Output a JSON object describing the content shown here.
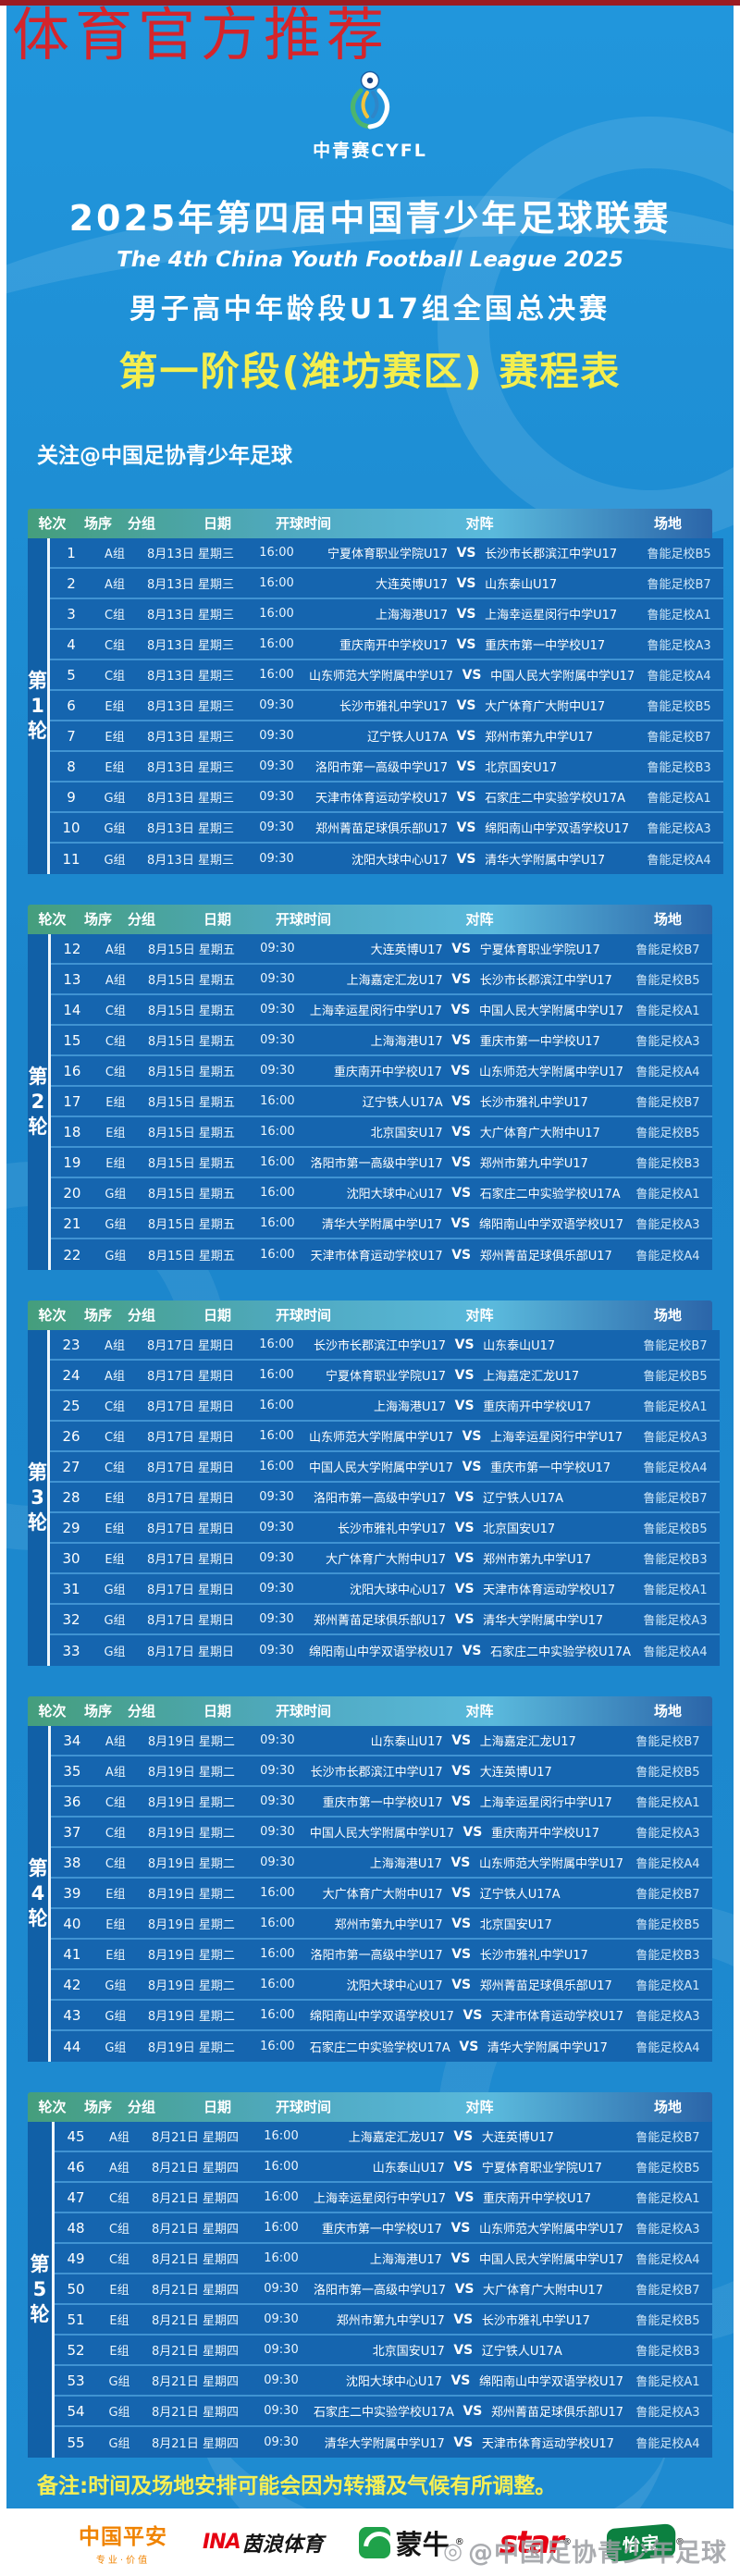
{
  "top_watermark": "体育官方推荐",
  "logo": {
    "label": "中青赛CYFL"
  },
  "header": {
    "title_cn": "2025年第四届中国青少年足球联赛",
    "title_en": "The 4th China Youth Football League 2025",
    "subtitle": "男子高中年龄段U17组全国总决赛",
    "stage": "第一阶段(潍坊赛区) 赛程表",
    "follow": "关注@中国足协青少年足球"
  },
  "table": {
    "columns": {
      "round": "轮次",
      "no": "场序",
      "group": "分组",
      "date": "日期",
      "time": "开球时间",
      "match": "对阵",
      "venue": "场地"
    },
    "vs": "VS",
    "rounds": [
      {
        "label": "第1轮",
        "matches": [
          {
            "no": "1",
            "group": "A组",
            "date": "8月13日 星期三",
            "time": "16:00",
            "home": "宁夏体育职业学院U17",
            "away": "长沙市长郡滨江中学U17",
            "venue": "鲁能足校B5"
          },
          {
            "no": "2",
            "group": "A组",
            "date": "8月13日 星期三",
            "time": "16:00",
            "home": "大连英博U17",
            "away": "山东泰山U17",
            "venue": "鲁能足校B7"
          },
          {
            "no": "3",
            "group": "C组",
            "date": "8月13日 星期三",
            "time": "16:00",
            "home": "上海海港U17",
            "away": "上海幸运星闵行中学U17",
            "venue": "鲁能足校A1"
          },
          {
            "no": "4",
            "group": "C组",
            "date": "8月13日 星期三",
            "time": "16:00",
            "home": "重庆南开中学校U17",
            "away": "重庆市第一中学校U17",
            "venue": "鲁能足校A3"
          },
          {
            "no": "5",
            "group": "C组",
            "date": "8月13日 星期三",
            "time": "16:00",
            "home": "山东师范大学附属中学U17",
            "away": "中国人民大学附属中学U17",
            "venue": "鲁能足校A4"
          },
          {
            "no": "6",
            "group": "E组",
            "date": "8月13日 星期三",
            "time": "09:30",
            "home": "长沙市雅礼中学U17",
            "away": "大广体育广大附中U17",
            "venue": "鲁能足校B5"
          },
          {
            "no": "7",
            "group": "E组",
            "date": "8月13日 星期三",
            "time": "09:30",
            "home": "辽宁铁人U17A",
            "away": "郑州市第九中学U17",
            "venue": "鲁能足校B7"
          },
          {
            "no": "8",
            "group": "E组",
            "date": "8月13日 星期三",
            "time": "09:30",
            "home": "洛阳市第一高级中学U17",
            "away": "北京国安U17",
            "venue": "鲁能足校B3"
          },
          {
            "no": "9",
            "group": "G组",
            "date": "8月13日 星期三",
            "time": "09:30",
            "home": "天津市体育运动学校U17",
            "away": "石家庄二中实验学校U17A",
            "venue": "鲁能足校A1"
          },
          {
            "no": "10",
            "group": "G组",
            "date": "8月13日 星期三",
            "time": "09:30",
            "home": "郑州菁苗足球俱乐部U17",
            "away": "绵阳南山中学双语学校U17",
            "venue": "鲁能足校A3"
          },
          {
            "no": "11",
            "group": "G组",
            "date": "8月13日 星期三",
            "time": "09:30",
            "home": "沈阳大球中心U17",
            "away": "清华大学附属中学U17",
            "venue": "鲁能足校A4"
          }
        ]
      },
      {
        "label": "第2轮",
        "matches": [
          {
            "no": "12",
            "group": "A组",
            "date": "8月15日 星期五",
            "time": "09:30",
            "home": "大连英博U17",
            "away": "宁夏体育职业学院U17",
            "venue": "鲁能足校B7"
          },
          {
            "no": "13",
            "group": "A组",
            "date": "8月15日 星期五",
            "time": "09:30",
            "home": "上海嘉定汇龙U17",
            "away": "长沙市长郡滨江中学U17",
            "venue": "鲁能足校B5"
          },
          {
            "no": "14",
            "group": "C组",
            "date": "8月15日 星期五",
            "time": "09:30",
            "home": "上海幸运星闵行中学U17",
            "away": "中国人民大学附属中学U17",
            "venue": "鲁能足校A1"
          },
          {
            "no": "15",
            "group": "C组",
            "date": "8月15日 星期五",
            "time": "09:30",
            "home": "上海海港U17",
            "away": "重庆市第一中学校U17",
            "venue": "鲁能足校A3"
          },
          {
            "no": "16",
            "group": "C组",
            "date": "8月15日 星期五",
            "time": "09:30",
            "home": "重庆南开中学校U17",
            "away": "山东师范大学附属中学U17",
            "venue": "鲁能足校A4"
          },
          {
            "no": "17",
            "group": "E组",
            "date": "8月15日 星期五",
            "time": "16:00",
            "home": "辽宁铁人U17A",
            "away": "长沙市雅礼中学U17",
            "venue": "鲁能足校B7"
          },
          {
            "no": "18",
            "group": "E组",
            "date": "8月15日 星期五",
            "time": "16:00",
            "home": "北京国安U17",
            "away": "大广体育广大附中U17",
            "venue": "鲁能足校B5"
          },
          {
            "no": "19",
            "group": "E组",
            "date": "8月15日 星期五",
            "time": "16:00",
            "home": "洛阳市第一高级中学U17",
            "away": "郑州市第九中学U17",
            "venue": "鲁能足校B3"
          },
          {
            "no": "20",
            "group": "G组",
            "date": "8月15日 星期五",
            "time": "16:00",
            "home": "沈阳大球中心U17",
            "away": "石家庄二中实验学校U17A",
            "venue": "鲁能足校A1"
          },
          {
            "no": "21",
            "group": "G组",
            "date": "8月15日 星期五",
            "time": "16:00",
            "home": "清华大学附属中学U17",
            "away": "绵阳南山中学双语学校U17",
            "venue": "鲁能足校A3"
          },
          {
            "no": "22",
            "group": "G组",
            "date": "8月15日 星期五",
            "time": "16:00",
            "home": "天津市体育运动学校U17",
            "away": "郑州菁苗足球俱乐部U17",
            "venue": "鲁能足校A4"
          }
        ]
      },
      {
        "label": "第3轮",
        "matches": [
          {
            "no": "23",
            "group": "A组",
            "date": "8月17日 星期日",
            "time": "16:00",
            "home": "长沙市长郡滨江中学U17",
            "away": "山东泰山U17",
            "venue": "鲁能足校B7"
          },
          {
            "no": "24",
            "group": "A组",
            "date": "8月17日 星期日",
            "time": "16:00",
            "home": "宁夏体育职业学院U17",
            "away": "上海嘉定汇龙U17",
            "venue": "鲁能足校B5"
          },
          {
            "no": "25",
            "group": "C组",
            "date": "8月17日 星期日",
            "time": "16:00",
            "home": "上海海港U17",
            "away": "重庆南开中学校U17",
            "venue": "鲁能足校A1"
          },
          {
            "no": "26",
            "group": "C组",
            "date": "8月17日 星期日",
            "time": "16:00",
            "home": "山东师范大学附属中学U17",
            "away": "上海幸运星闵行中学U17",
            "venue": "鲁能足校A3"
          },
          {
            "no": "27",
            "group": "C组",
            "date": "8月17日 星期日",
            "time": "16:00",
            "home": "中国人民大学附属中学U17",
            "away": "重庆市第一中学校U17",
            "venue": "鲁能足校A4"
          },
          {
            "no": "28",
            "group": "E组",
            "date": "8月17日 星期日",
            "time": "09:30",
            "home": "洛阳市第一高级中学U17",
            "away": "辽宁铁人U17A",
            "venue": "鲁能足校B7"
          },
          {
            "no": "29",
            "group": "E组",
            "date": "8月17日 星期日",
            "time": "09:30",
            "home": "长沙市雅礼中学U17",
            "away": "北京国安U17",
            "venue": "鲁能足校B5"
          },
          {
            "no": "30",
            "group": "E组",
            "date": "8月17日 星期日",
            "time": "09:30",
            "home": "大广体育广大附中U17",
            "away": "郑州市第九中学U17",
            "venue": "鲁能足校B3"
          },
          {
            "no": "31",
            "group": "G组",
            "date": "8月17日 星期日",
            "time": "09:30",
            "home": "沈阳大球中心U17",
            "away": "天津市体育运动学校U17",
            "venue": "鲁能足校A1"
          },
          {
            "no": "32",
            "group": "G组",
            "date": "8月17日 星期日",
            "time": "09:30",
            "home": "郑州菁苗足球俱乐部U17",
            "away": "清华大学附属中学U17",
            "venue": "鲁能足校A3"
          },
          {
            "no": "33",
            "group": "G组",
            "date": "8月17日 星期日",
            "time": "09:30",
            "home": "绵阳南山中学双语学校U17",
            "away": "石家庄二中实验学校U17A",
            "venue": "鲁能足校A4"
          }
        ]
      },
      {
        "label": "第4轮",
        "matches": [
          {
            "no": "34",
            "group": "A组",
            "date": "8月19日 星期二",
            "time": "09:30",
            "home": "山东泰山U17",
            "away": "上海嘉定汇龙U17",
            "venue": "鲁能足校B7"
          },
          {
            "no": "35",
            "group": "A组",
            "date": "8月19日 星期二",
            "time": "09:30",
            "home": "长沙市长郡滨江中学U17",
            "away": "大连英博U17",
            "venue": "鲁能足校B5"
          },
          {
            "no": "36",
            "group": "C组",
            "date": "8月19日 星期二",
            "time": "09:30",
            "home": "重庆市第一中学校U17",
            "away": "上海幸运星闵行中学U17",
            "venue": "鲁能足校A1"
          },
          {
            "no": "37",
            "group": "C组",
            "date": "8月19日 星期二",
            "time": "09:30",
            "home": "中国人民大学附属中学U17",
            "away": "重庆南开中学校U17",
            "venue": "鲁能足校A3"
          },
          {
            "no": "38",
            "group": "C组",
            "date": "8月19日 星期二",
            "time": "09:30",
            "home": "上海海港U17",
            "away": "山东师范大学附属中学U17",
            "venue": "鲁能足校A4"
          },
          {
            "no": "39",
            "group": "E组",
            "date": "8月19日 星期二",
            "time": "16:00",
            "home": "大广体育广大附中U17",
            "away": "辽宁铁人U17A",
            "venue": "鲁能足校B7"
          },
          {
            "no": "40",
            "group": "E组",
            "date": "8月19日 星期二",
            "time": "16:00",
            "home": "郑州市第九中学U17",
            "away": "北京国安U17",
            "venue": "鲁能足校B5"
          },
          {
            "no": "41",
            "group": "E组",
            "date": "8月19日 星期二",
            "time": "16:00",
            "home": "洛阳市第一高级中学U17",
            "away": "长沙市雅礼中学U17",
            "venue": "鲁能足校B3"
          },
          {
            "no": "42",
            "group": "G组",
            "date": "8月19日 星期二",
            "time": "16:00",
            "home": "沈阳大球中心U17",
            "away": "郑州菁苗足球俱乐部U17",
            "venue": "鲁能足校A1"
          },
          {
            "no": "43",
            "group": "G组",
            "date": "8月19日 星期二",
            "time": "16:00",
            "home": "绵阳南山中学双语学校U17",
            "away": "天津市体育运动学校U17",
            "venue": "鲁能足校A3"
          },
          {
            "no": "44",
            "group": "G组",
            "date": "8月19日 星期二",
            "time": "16:00",
            "home": "石家庄二中实验学校U17A",
            "away": "清华大学附属中学U17",
            "venue": "鲁能足校A4"
          }
        ]
      },
      {
        "label": "第5轮",
        "matches": [
          {
            "no": "45",
            "group": "A组",
            "date": "8月21日 星期四",
            "time": "16:00",
            "home": "上海嘉定汇龙U17",
            "away": "大连英博U17",
            "venue": "鲁能足校B7"
          },
          {
            "no": "46",
            "group": "A组",
            "date": "8月21日 星期四",
            "time": "16:00",
            "home": "山东泰山U17",
            "away": "宁夏体育职业学院U17",
            "venue": "鲁能足校B5"
          },
          {
            "no": "47",
            "group": "C组",
            "date": "8月21日 星期四",
            "time": "16:00",
            "home": "上海幸运星闵行中学U17",
            "away": "重庆南开中学校U17",
            "venue": "鲁能足校A1"
          },
          {
            "no": "48",
            "group": "C组",
            "date": "8月21日 星期四",
            "time": "16:00",
            "home": "重庆市第一中学校U17",
            "away": "山东师范大学附属中学U17",
            "venue": "鲁能足校A3"
          },
          {
            "no": "49",
            "group": "C组",
            "date": "8月21日 星期四",
            "time": "16:00",
            "home": "上海海港U17",
            "away": "中国人民大学附属中学U17",
            "venue": "鲁能足校A4"
          },
          {
            "no": "50",
            "group": "E组",
            "date": "8月21日 星期四",
            "time": "09:30",
            "home": "洛阳市第一高级中学U17",
            "away": "大广体育广大附中U17",
            "venue": "鲁能足校B7"
          },
          {
            "no": "51",
            "group": "E组",
            "date": "8月21日 星期四",
            "time": "09:30",
            "home": "郑州市第九中学U17",
            "away": "长沙市雅礼中学U17",
            "venue": "鲁能足校B5"
          },
          {
            "no": "52",
            "group": "E组",
            "date": "8月21日 星期四",
            "time": "09:30",
            "home": "北京国安U17",
            "away": "辽宁铁人U17A",
            "venue": "鲁能足校B3"
          },
          {
            "no": "53",
            "group": "G组",
            "date": "8月21日 星期四",
            "time": "09:30",
            "home": "沈阳大球中心U17",
            "away": "绵阳南山中学双语学校U17",
            "venue": "鲁能足校A1"
          },
          {
            "no": "54",
            "group": "G组",
            "date": "8月21日 星期四",
            "time": "09:30",
            "home": "石家庄二中实验学校U17A",
            "away": "郑州菁苗足球俱乐部U17",
            "venue": "鲁能足校A3"
          },
          {
            "no": "55",
            "group": "G组",
            "date": "8月21日 星期四",
            "time": "09:30",
            "home": "清华大学附属中学U17",
            "away": "天津市体育运动学校U17",
            "venue": "鲁能足校A4"
          }
        ]
      }
    ]
  },
  "note": "备注:时间及场地安排可能会因为转播及气候有所调整。",
  "sponsors": {
    "pingan": {
      "name": "中国平安",
      "tagline": "专业·价值"
    },
    "ina": {
      "prefix": "INA",
      "name": "茵浪体育"
    },
    "mengniu": {
      "name": "蒙牛",
      "reg": "®"
    },
    "star": {
      "name": "star",
      "reg": "®"
    },
    "yibao": {
      "name": "怡宝",
      "reg": "®"
    }
  },
  "bottom_watermark": "@中国足协青少年足球",
  "colors": {
    "poster_blue": "#1e8bd1",
    "row_blue": "#1565af",
    "round_col_blue": "#1160a7",
    "header_teal": "#459e7c",
    "header_blue": "#2b65a9",
    "stage_yellow": "#f4ee4e",
    "note_yellow": "#f6ef55",
    "watermark_red": "#d5252b",
    "pingan_orange": "#f08300",
    "star_red": "#e60012",
    "mengniu_green": "#1fa24a",
    "yibao_green": "#0c8040"
  }
}
